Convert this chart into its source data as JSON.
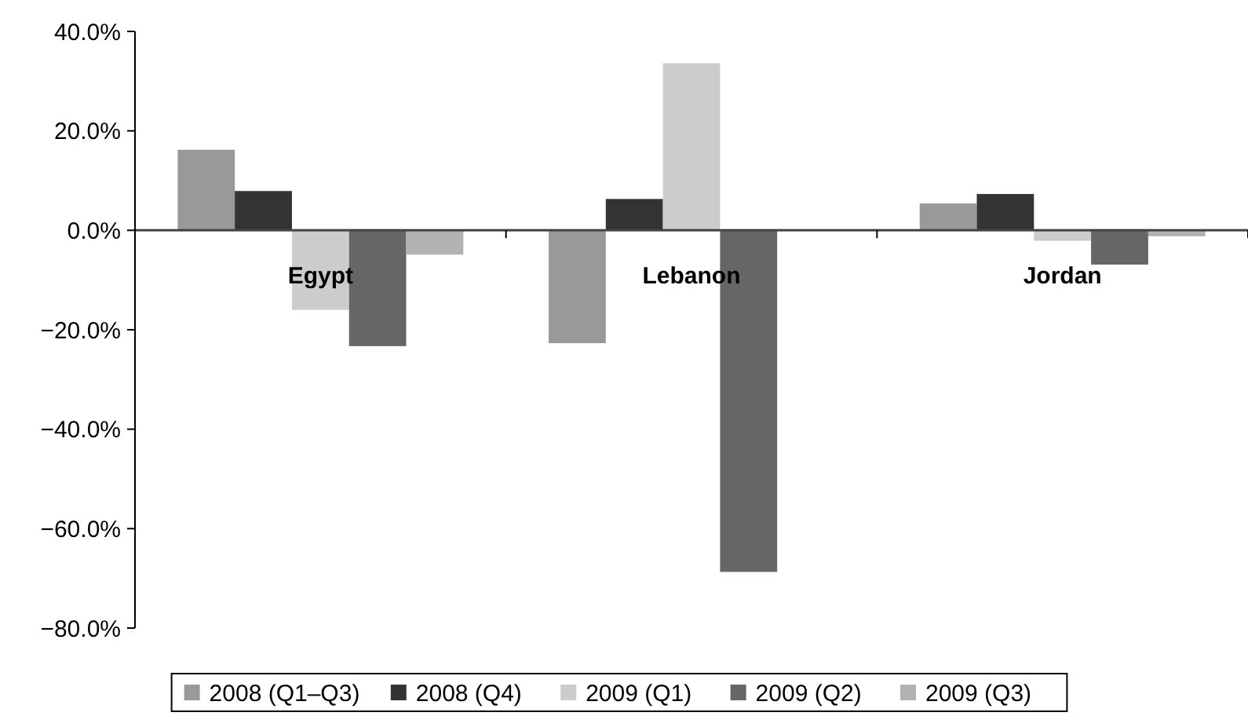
{
  "chart_data": {
    "type": "bar",
    "categories": [
      "Egypt",
      "Lebanon",
      "Jordan"
    ],
    "series": [
      {
        "name": "2008 (Q1–Q3)",
        "color": "#999999",
        "values": [
          16.2,
          -22.7,
          5.4
        ]
      },
      {
        "name": "2008 (Q4)",
        "color": "#333333",
        "values": [
          7.9,
          6.3,
          7.3
        ]
      },
      {
        "name": "2009 (Q1)",
        "color": "#cccccc",
        "values": [
          -16.0,
          33.6,
          -2.1
        ]
      },
      {
        "name": "2009 (Q2)",
        "color": "#666666",
        "values": [
          -23.3,
          -68.7,
          -6.9
        ]
      },
      {
        "name": "2009 (Q3)",
        "color": "#b2b2b2",
        "values": [
          -4.9,
          0,
          -1.2
        ]
      }
    ],
    "ylim": [
      -80,
      40
    ],
    "yticks": [
      {
        "value": -80,
        "label": "−80.0%"
      },
      {
        "value": -60,
        "label": "−60.0%"
      },
      {
        "value": -40,
        "label": "−40.0%"
      },
      {
        "value": -20,
        "label": "−20.0%"
      },
      {
        "value": 0,
        "label": "0.0%"
      },
      {
        "value": 20,
        "label": "20.0%"
      },
      {
        "value": 40,
        "label": "40.0%"
      }
    ],
    "grid": false,
    "legend": "bottom"
  }
}
